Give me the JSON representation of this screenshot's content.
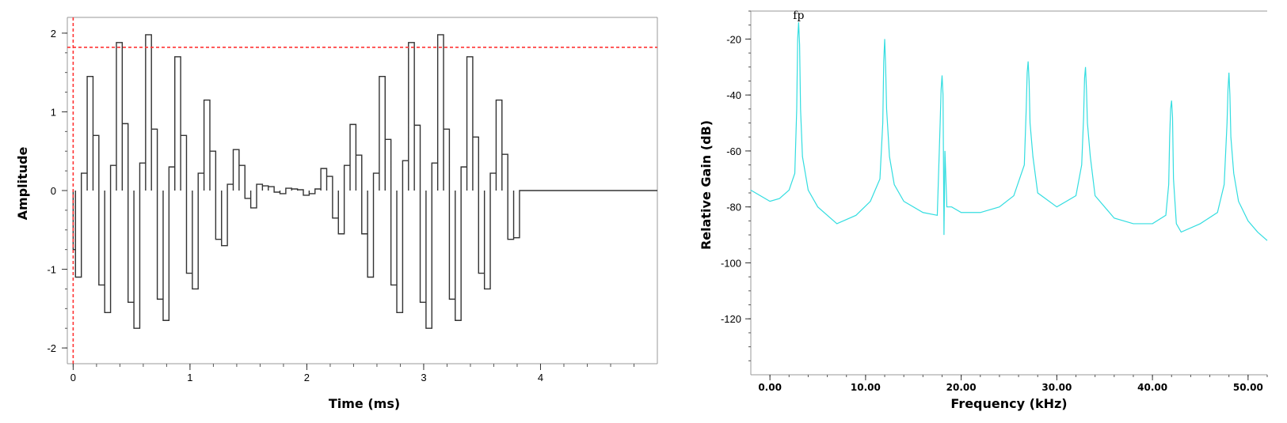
{
  "chart_data": [
    {
      "type": "line",
      "xlabel": "Time (ms)",
      "ylabel": "Amplitude",
      "xlim": [
        -0.05,
        5.0
      ],
      "ylim": [
        -2.2,
        2.2
      ],
      "x_ticks": [
        0,
        1,
        2,
        3,
        4
      ],
      "y_ticks": [
        -2,
        -1,
        0,
        1,
        2
      ],
      "line_color": "#333333",
      "reference_line_color": "#ff3333",
      "reference_lines": {
        "vertical_x": 0.0,
        "horizontal_y": 1.82
      },
      "series": [
        {
          "step": true,
          "x": [
            0.0,
            0.02,
            0.07,
            0.12,
            0.17,
            0.22,
            0.27,
            0.32,
            0.37,
            0.42,
            0.47,
            0.52,
            0.57,
            0.62,
            0.67,
            0.72,
            0.77,
            0.82,
            0.87,
            0.92,
            0.97,
            1.02,
            1.07,
            1.12,
            1.17,
            1.22,
            1.27,
            1.32,
            1.37,
            1.42,
            1.47,
            1.52,
            1.57,
            1.62,
            1.67,
            1.72,
            1.77,
            1.82,
            1.87,
            1.92,
            1.97,
            2.02,
            2.07,
            2.12,
            2.17,
            2.22,
            2.27,
            2.32,
            2.37,
            2.42,
            2.47,
            2.52,
            2.57,
            2.62,
            2.67,
            2.72,
            2.77,
            2.82,
            2.87,
            2.92,
            2.97,
            3.02,
            3.07,
            3.12,
            3.17,
            3.22,
            3.27,
            3.32,
            3.37,
            3.42,
            3.47,
            3.52,
            3.57,
            3.62,
            3.67,
            3.72,
            3.77,
            3.82,
            3.87,
            3.92,
            3.97,
            4.02,
            4.07,
            4.12,
            4.17,
            4.22,
            4.27,
            4.32,
            4.37,
            4.42,
            4.47,
            4.52,
            4.57,
            4.62,
            4.67,
            4.72,
            4.77,
            4.82,
            4.87,
            4.92,
            4.97
          ],
          "y": [
            -0.75,
            -1.1,
            0.22,
            1.45,
            0.7,
            -1.2,
            -1.55,
            0.32,
            1.88,
            0.85,
            -1.42,
            -1.75,
            0.35,
            1.98,
            0.78,
            -1.38,
            -1.65,
            0.3,
            1.7,
            0.7,
            -1.05,
            -1.25,
            0.22,
            1.15,
            0.5,
            -0.62,
            -0.7,
            0.08,
            0.52,
            0.32,
            -0.1,
            -0.22,
            0.08,
            0.06,
            0.05,
            -0.02,
            -0.04,
            0.03,
            0.02,
            0.01,
            -0.06,
            -0.04,
            0.02,
            0.28,
            0.18,
            -0.35,
            -0.55,
            0.32,
            0.84,
            0.45,
            -0.55,
            -1.1,
            0.22,
            1.45,
            0.65,
            -1.2,
            -1.55,
            0.38,
            1.88,
            0.83,
            -1.42,
            -1.75,
            0.35,
            1.98,
            0.78,
            -1.38,
            -1.65,
            0.3,
            1.7,
            0.68,
            -1.05,
            -1.25,
            0.22,
            1.15,
            0.46,
            -0.62,
            -0.6,
            0.0,
            0.0,
            0.0,
            0.0,
            0.0,
            0.0,
            0.0,
            0.0,
            0.0,
            0.0,
            0.0,
            0.0,
            0.0,
            0.0,
            0.0,
            0.0,
            0.0,
            0.0,
            0.0,
            0.0,
            0.0,
            0.0,
            0.0,
            0.0
          ]
        }
      ]
    },
    {
      "type": "line",
      "xlabel": "Frequency (kHz)",
      "ylabel": "Relative Gain (dB)",
      "xlim": [
        -2,
        52
      ],
      "ylim": [
        -140,
        -10
      ],
      "x_ticks": [
        "0.00",
        "10.00",
        "20.00",
        "30.00",
        "40.00",
        "50.00"
      ],
      "y_ticks": [
        -20,
        -40,
        -60,
        -80,
        -100,
        -120
      ],
      "line_color": "#33dde0",
      "annotations": [
        {
          "text": "fp",
          "x": 3.0,
          "y": -14
        }
      ],
      "peaks_khz": [
        3.0,
        12.0,
        18.0,
        27.0,
        33.0,
        42.0,
        48.0
      ],
      "peak_levels_db": [
        -14,
        -20,
        -33,
        -28,
        -30,
        -42,
        -32
      ],
      "series": [
        {
          "x": [
            -2,
            0,
            1,
            2,
            2.6,
            2.8,
            2.9,
            3.0,
            3.1,
            3.2,
            3.4,
            4,
            5,
            7,
            9,
            10.5,
            11.5,
            11.8,
            11.9,
            12.0,
            12.1,
            12.2,
            12.5,
            13,
            14,
            16,
            17.5,
            17.8,
            17.9,
            18.0,
            18.1,
            18.2,
            18.3,
            18.5,
            19,
            20,
            22,
            24,
            25.5,
            26.6,
            26.8,
            26.9,
            27.0,
            27.1,
            27.2,
            27.5,
            28,
            30,
            32,
            32.6,
            32.8,
            32.9,
            33.0,
            33.1,
            33.2,
            33.5,
            34,
            36,
            38,
            40,
            41.4,
            41.7,
            41.8,
            41.9,
            42.0,
            42.1,
            42.2,
            42.5,
            43,
            45,
            46.8,
            47.5,
            47.8,
            47.9,
            48.0,
            48.1,
            48.2,
            48.5,
            49,
            50,
            51,
            52
          ],
          "y": [
            -74,
            -78,
            -77,
            -74,
            -68,
            -45,
            -20,
            -14,
            -22,
            -45,
            -62,
            -74,
            -80,
            -86,
            -83,
            -78,
            -70,
            -50,
            -28,
            -20,
            -30,
            -45,
            -62,
            -72,
            -78,
            -82,
            -83,
            -50,
            -38,
            -33,
            -40,
            -90,
            -60,
            -80,
            -80,
            -82,
            -82,
            -80,
            -76,
            -65,
            -45,
            -32,
            -28,
            -35,
            -50,
            -62,
            -75,
            -80,
            -76,
            -65,
            -48,
            -34,
            -30,
            -38,
            -50,
            -62,
            -76,
            -84,
            -86,
            -86,
            -83,
            -72,
            -55,
            -45,
            -42,
            -48,
            -70,
            -86,
            -89,
            -86,
            -82,
            -72,
            -50,
            -38,
            -32,
            -40,
            -55,
            -68,
            -78,
            -85,
            -89,
            -92
          ]
        }
      ]
    }
  ]
}
